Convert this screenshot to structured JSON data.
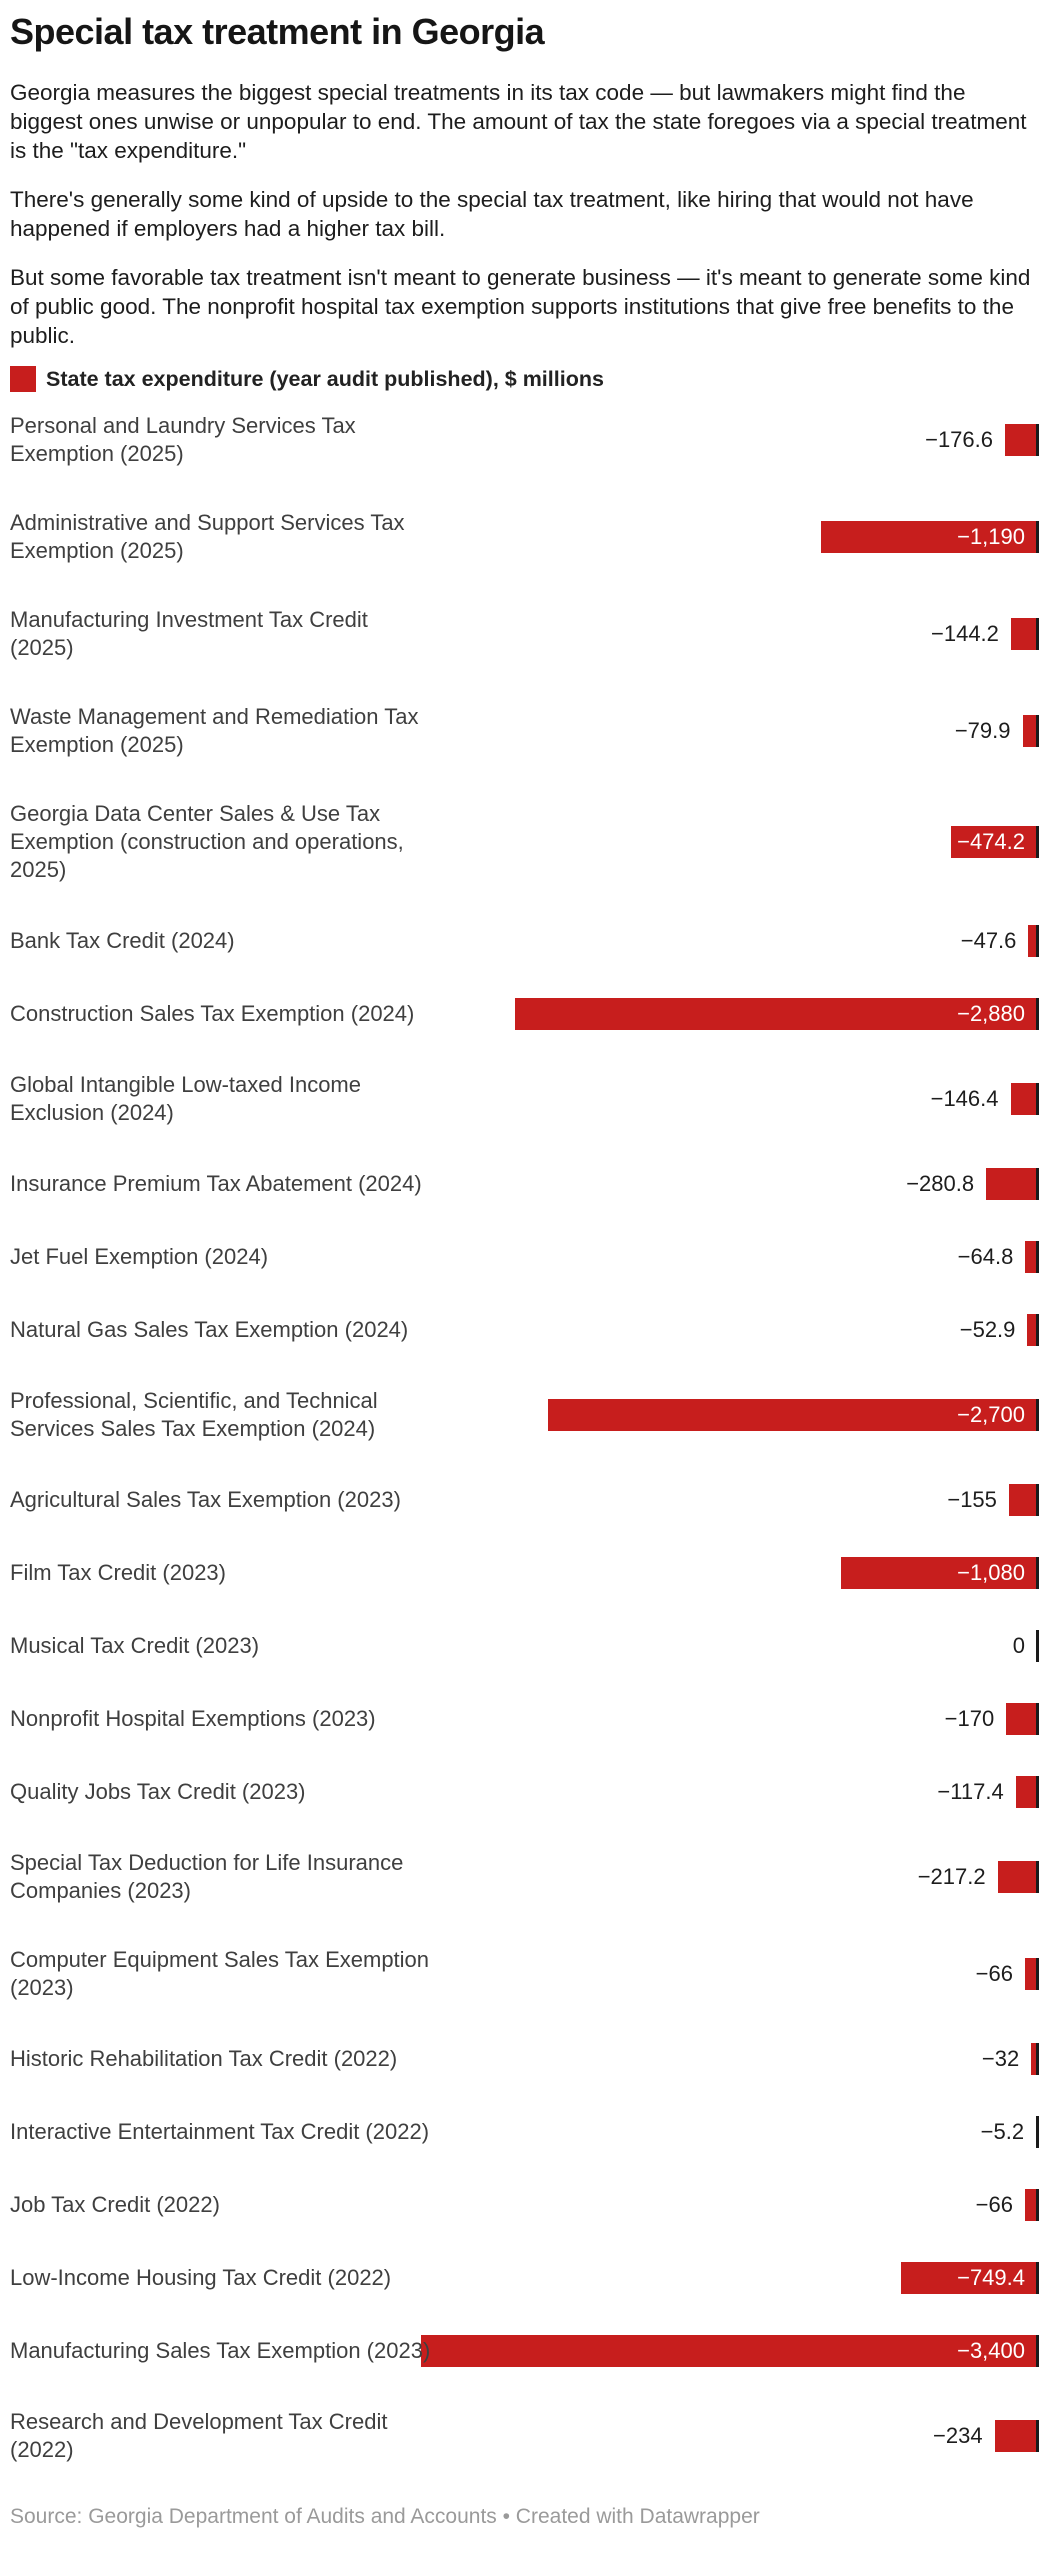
{
  "header": {
    "title": "Special tax treatment in Georgia",
    "paragraphs": [
      "Georgia measures the biggest special treatments in its tax code — but lawmakers might find the biggest ones unwise or unpopular to end. The amount of tax the state foregoes via a special treatment is the \"tax expenditure.\"",
      "There's generally some kind of upside to the special tax treatment, like hiring that would not have happened if employers had a higher tax bill.",
      "But some favorable tax treatment isn't meant to generate business — it's meant to generate some kind of public good. The nonprofit hospital tax exemption supports institutions that give free benefits to the public."
    ]
  },
  "legend": {
    "label": "State tax expenditure (year audit published), $ millions",
    "swatch_color": "#c71e1d"
  },
  "chart_data": {
    "type": "bar",
    "orientation": "horizontal",
    "unit": "$ millions",
    "title": "State tax expenditure (year audit published), $ millions",
    "baseline": 0,
    "axis_max_magnitude": 3400,
    "bar_color": "#c71e1d",
    "baseline_tick_color": "#1a1a1a",
    "rows": [
      {
        "label": "Personal and Laundry Services Tax Exemption (2025)",
        "label_lines": [
          "Personal and Laundry Services Tax",
          "Exemption (2025)"
        ],
        "value": -176.6,
        "display": "−176.6",
        "value_inside": false
      },
      {
        "label": "Administrative and Support Services Tax Exemption (2025)",
        "label_lines": [
          "Administrative and Support Services Tax",
          "Exemption (2025)"
        ],
        "value": -1190,
        "display": "−1,190",
        "value_inside": true
      },
      {
        "label": "Manufacturing Investment Tax Credit (2025)",
        "label_lines": [
          "Manufacturing Investment Tax Credit",
          "(2025)"
        ],
        "value": -144.2,
        "display": "−144.2",
        "value_inside": false
      },
      {
        "label": "Waste Management and Remediation Tax Exemption (2025)",
        "label_lines": [
          "Waste Management and Remediation Tax",
          "Exemption (2025)"
        ],
        "value": -79.9,
        "display": "−79.9",
        "value_inside": false
      },
      {
        "label": "Georgia Data Center Sales & Use Tax Exemption (construction and operations, 2025)",
        "label_lines": [
          "Georgia Data Center Sales & Use Tax",
          "Exemption (construction and operations,",
          "2025)"
        ],
        "value": -474.2,
        "display": "−474.2",
        "value_inside": true
      },
      {
        "label": "Bank Tax Credit (2024)",
        "label_lines": [
          "Bank Tax Credit (2024)"
        ],
        "value": -47.6,
        "display": "−47.6",
        "value_inside": false
      },
      {
        "label": "Construction Sales Tax Exemption (2024)",
        "label_lines": [
          "Construction Sales Tax Exemption (2024)"
        ],
        "value": -2880,
        "display": "−2,880",
        "value_inside": true
      },
      {
        "label": "Global Intangible Low-taxed Income Exclusion (2024)",
        "label_lines": [
          "Global Intangible Low-taxed Income",
          "Exclusion (2024)"
        ],
        "value": -146.4,
        "display": "−146.4",
        "value_inside": false
      },
      {
        "label": "Insurance Premium Tax Abatement (2024)",
        "label_lines": [
          "Insurance Premium Tax Abatement (2024)"
        ],
        "value": -280.8,
        "display": "−280.8",
        "value_inside": false
      },
      {
        "label": "Jet Fuel Exemption (2024)",
        "label_lines": [
          "Jet Fuel Exemption (2024)"
        ],
        "value": -64.8,
        "display": "−64.8",
        "value_inside": false
      },
      {
        "label": "Natural Gas Sales Tax Exemption (2024)",
        "label_lines": [
          "Natural Gas Sales Tax Exemption (2024)"
        ],
        "value": -52.9,
        "display": "−52.9",
        "value_inside": false
      },
      {
        "label": "Professional, Scientific, and Technical Services Sales Tax Exemption (2024)",
        "label_lines": [
          "Professional, Scientific, and Technical",
          "Services Sales Tax Exemption (2024)"
        ],
        "value": -2700,
        "display": "−2,700",
        "value_inside": true
      },
      {
        "label": "Agricultural Sales Tax Exemption (2023)",
        "label_lines": [
          "Agricultural Sales Tax Exemption (2023)"
        ],
        "value": -155,
        "display": "−155",
        "value_inside": false
      },
      {
        "label": "Film Tax Credit (2023)",
        "label_lines": [
          "Film Tax Credit (2023)"
        ],
        "value": -1080,
        "display": "−1,080",
        "value_inside": true
      },
      {
        "label": "Musical Tax Credit (2023)",
        "label_lines": [
          "Musical Tax Credit (2023)"
        ],
        "value": 0,
        "display": "0",
        "value_inside": false
      },
      {
        "label": "Nonprofit Hospital Exemptions (2023)",
        "label_lines": [
          "Nonprofit Hospital Exemptions (2023)"
        ],
        "value": -170,
        "display": "−170",
        "value_inside": false
      },
      {
        "label": "Quality Jobs Tax Credit (2023)",
        "label_lines": [
          "Quality Jobs Tax Credit (2023)"
        ],
        "value": -117.4,
        "display": "−117.4",
        "value_inside": false
      },
      {
        "label": "Special Tax Deduction for Life Insurance Companies (2023)",
        "label_lines": [
          "Special Tax Deduction for Life Insurance",
          "Companies (2023)"
        ],
        "value": -217.2,
        "display": "−217.2",
        "value_inside": false
      },
      {
        "label": "Computer Equipment Sales Tax Exemption (2023)",
        "label_lines": [
          "Computer Equipment Sales Tax Exemption",
          "(2023)"
        ],
        "value": -66,
        "display": "−66",
        "value_inside": false
      },
      {
        "label": "Historic Rehabilitation Tax Credit (2022)",
        "label_lines": [
          "Historic Rehabilitation Tax Credit (2022)"
        ],
        "value": -32,
        "display": "−32",
        "value_inside": false
      },
      {
        "label": "Interactive Entertainment Tax Credit (2022)",
        "label_lines": [
          "Interactive Entertainment Tax Credit (2022)"
        ],
        "value": -5.2,
        "display": "−5.2",
        "value_inside": false
      },
      {
        "label": "Job Tax Credit (2022)",
        "label_lines": [
          "Job Tax Credit (2022)"
        ],
        "value": -66,
        "display": "−66",
        "value_inside": false
      },
      {
        "label": "Low-Income Housing Tax Credit (2022)",
        "label_lines": [
          "Low-Income Housing Tax Credit (2022)"
        ],
        "value": -749.4,
        "display": "−749.4",
        "value_inside": true
      },
      {
        "label": "Manufacturing Sales Tax Exemption (2023)",
        "label_lines": [
          "Manufacturing Sales Tax Exemption (2023)"
        ],
        "value": -3400,
        "display": "−3,400",
        "value_inside": true
      },
      {
        "label": "Research and Development Tax Credit (2022)",
        "label_lines": [
          "Research and Development Tax Credit",
          "(2022)"
        ],
        "value": -234,
        "display": "−234",
        "value_inside": false
      }
    ]
  },
  "footer": {
    "text": "Source: Georgia Department of Audits and Accounts • Created with Datawrapper"
  }
}
